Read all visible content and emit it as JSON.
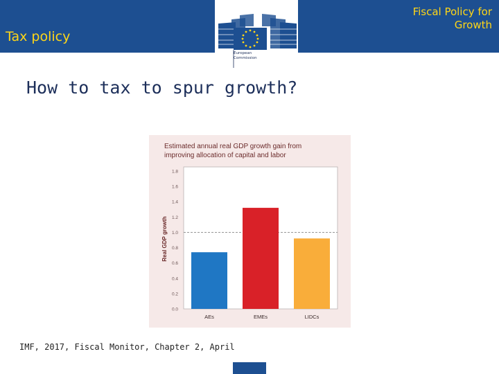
{
  "header": {
    "section_title": "Tax policy",
    "right_title_line1": "Fiscal Policy for",
    "right_title_line2": "Growth",
    "logo_caption_line1": "European",
    "logo_caption_line2": "Commission",
    "band_color": "#1d4f91",
    "accent_color": "#ffd617"
  },
  "main": {
    "heading": "How to tax to spur growth?",
    "citation": "IMF, 2017, Fiscal Monitor, Chapter 2,  April"
  },
  "chart_data": {
    "type": "bar",
    "title_line1": "Estimated annual real GDP growth gain from",
    "title_line2": "improving allocation of capital and labor",
    "ylabel": "Real GDP growth",
    "categories": [
      "AEs",
      "EMEs",
      "LIDCs"
    ],
    "values": [
      0.74,
      1.32,
      0.92
    ],
    "colors": [
      "#1f77c4",
      "#d92128",
      "#f9ad3a"
    ],
    "ylim": [
      0,
      1.8
    ],
    "yticks": [
      "0.0",
      "0.2",
      "0.4",
      "0.6",
      "0.8",
      "1.0",
      "1.2",
      "1.4",
      "1.6",
      "1.8"
    ],
    "ytick_values": [
      0,
      0.2,
      0.4,
      0.6,
      0.8,
      1.0,
      1.2,
      1.4,
      1.6,
      1.8
    ],
    "reference_line": 1.0,
    "background": "#f6e9e8",
    "grid": false
  }
}
